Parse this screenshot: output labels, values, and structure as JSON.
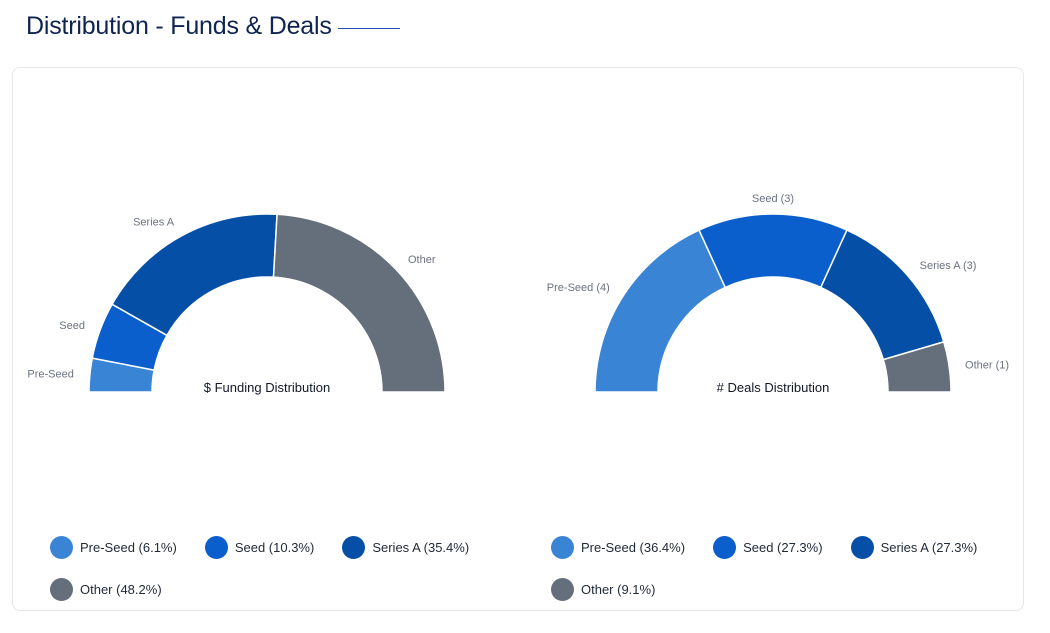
{
  "page": {
    "title": "Distribution - Funds & Deals"
  },
  "colors": {
    "pre_seed": "#3a84d6",
    "seed": "#0a5fcc",
    "series_a": "#064fa6",
    "other": "#646f7b"
  },
  "chart_data": [
    {
      "type": "pie",
      "variant": "half-donut",
      "center_title": "$ Funding Distribution",
      "slices": [
        {
          "key": "pre_seed",
          "label": "Pre-Seed",
          "percent": 6.1,
          "legend": "Pre-Seed (6.1%)"
        },
        {
          "key": "seed",
          "label": "Seed",
          "percent": 10.3,
          "legend": "Seed (10.3%)"
        },
        {
          "key": "series_a",
          "label": "Series A",
          "percent": 35.4,
          "legend": "Series A (35.4%)"
        },
        {
          "key": "other",
          "label": "Other",
          "percent": 48.2,
          "legend": "Other (48.2%)"
        }
      ]
    },
    {
      "type": "pie",
      "variant": "half-donut",
      "center_title": "# Deals Distribution",
      "slices": [
        {
          "key": "pre_seed",
          "label": "Pre-Seed (4)",
          "count": 4,
          "percent": 36.4,
          "legend": "Pre-Seed (36.4%)"
        },
        {
          "key": "seed",
          "label": "Seed (3)",
          "count": 3,
          "percent": 27.3,
          "legend": "Seed (27.3%)"
        },
        {
          "key": "series_a",
          "label": "Series A (3)",
          "count": 3,
          "percent": 27.3,
          "legend": "Series A (27.3%)"
        },
        {
          "key": "other",
          "label": "Other (1)",
          "count": 1,
          "percent": 9.1,
          "legend": "Other (9.1%)"
        }
      ]
    }
  ]
}
